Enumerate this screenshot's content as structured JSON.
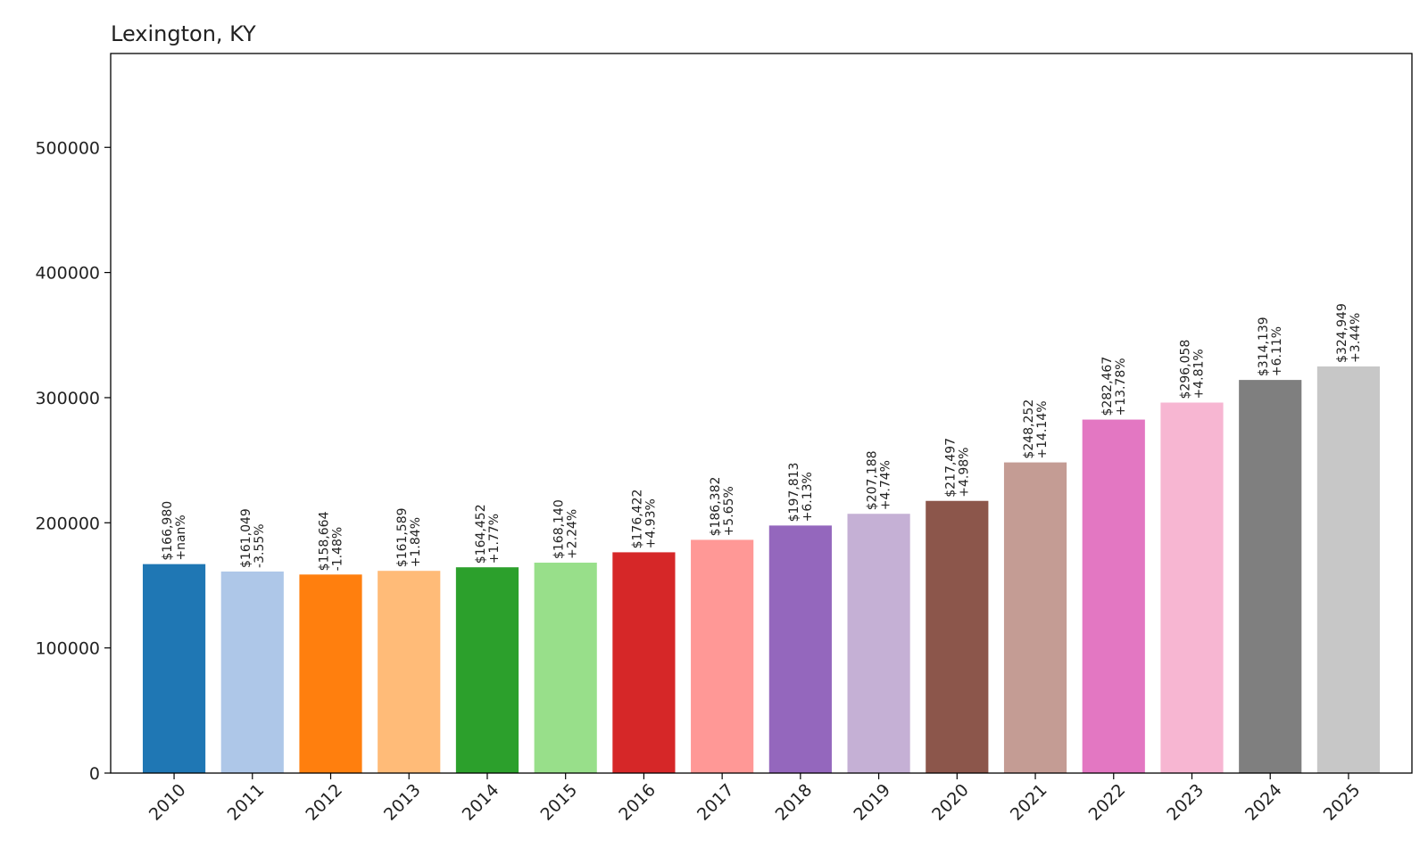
{
  "chart_data": {
    "type": "bar",
    "title": "Lexington, KY",
    "xlabel": "",
    "ylabel": "",
    "categories": [
      "2010",
      "2011",
      "2012",
      "2013",
      "2014",
      "2015",
      "2016",
      "2017",
      "2018",
      "2019",
      "2020",
      "2021",
      "2022",
      "2023",
      "2024",
      "2025"
    ],
    "values": [
      166980,
      161049,
      158664,
      161589,
      164452,
      168140,
      176422,
      186382,
      197813,
      207188,
      217497,
      248252,
      282467,
      296058,
      314139,
      324949
    ],
    "value_labels": [
      "$166,980",
      "$161,049",
      "$158,664",
      "$161,589",
      "$164,452",
      "$168,140",
      "$176,422",
      "$186,382",
      "$197,813",
      "$207,188",
      "$217,497",
      "$248,252",
      "$282,467",
      "$296,058",
      "$314,139",
      "$324,949"
    ],
    "change_labels": [
      "+nan%",
      "-3.55%",
      "-1.48%",
      "+1.84%",
      "+1.77%",
      "+2.24%",
      "+4.93%",
      "+5.65%",
      "+6.13%",
      "+4.74%",
      "+4.98%",
      "+14.14%",
      "+13.78%",
      "+4.81%",
      "+6.11%",
      "+3.44%"
    ],
    "colors": [
      "#1f77b4",
      "#aec7e8",
      "#ff7f0e",
      "#ffbb78",
      "#2ca02c",
      "#98df8a",
      "#d62728",
      "#ff9896",
      "#9467bd",
      "#c5b0d5",
      "#8c564b",
      "#c49c94",
      "#e377c2",
      "#f7b6d2",
      "#7f7f7f",
      "#c7c7c7"
    ],
    "yticks": [
      0,
      100000,
      200000,
      300000,
      400000,
      500000
    ],
    "ylim": [
      0,
      575000
    ],
    "grid": false,
    "legend": "none"
  }
}
